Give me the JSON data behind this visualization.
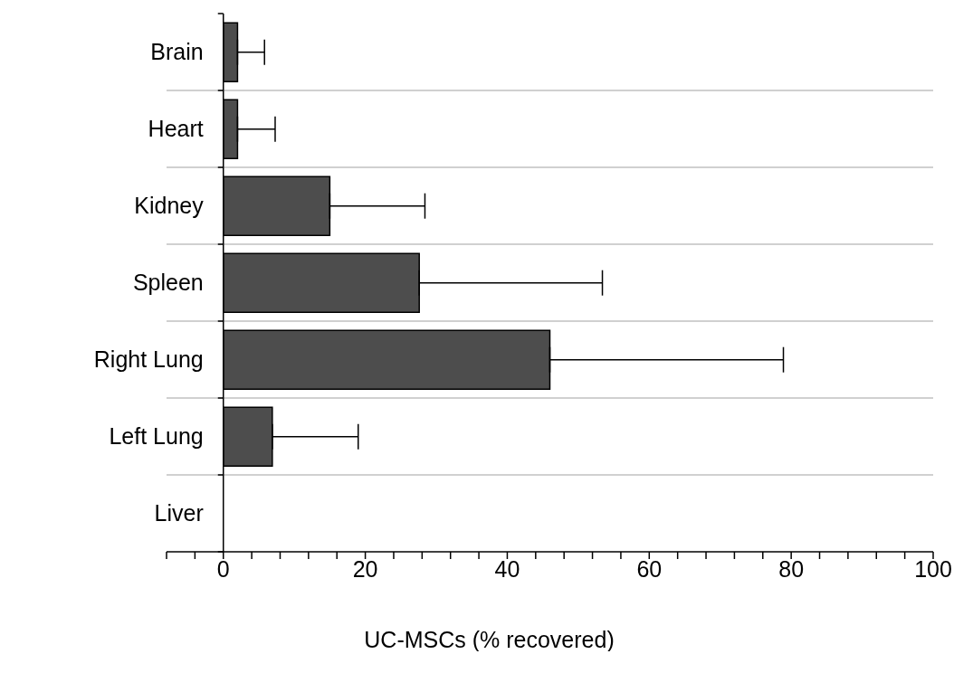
{
  "chart_data": {
    "type": "bar",
    "orientation": "horizontal",
    "xlabel": "UC-MSCs (% recovered)",
    "categories": [
      "Brain",
      "Heart",
      "Kidney",
      "Spleen",
      "Right Lung",
      "Left Lung",
      "Liver"
    ],
    "values": [
      2.0,
      2.0,
      15.0,
      27.6,
      46.0,
      6.9,
      0
    ],
    "errors": [
      [
        2.0,
        5.8
      ],
      [
        2.0,
        7.3
      ],
      [
        15.0,
        28.4
      ],
      [
        27.6,
        53.4
      ],
      [
        46.0,
        78.9
      ],
      [
        6.9,
        19.0
      ],
      null
    ],
    "color": "#4d4d4d",
    "xlim": [
      -8,
      100
    ],
    "xticks": [
      {
        "value": -8,
        "label": null
      },
      {
        "value": -4,
        "label": null
      },
      0,
      {
        "value": 4,
        "label": null
      },
      {
        "value": 8,
        "label": null
      },
      {
        "value": 12,
        "label": null
      },
      {
        "value": 16,
        "label": null
      },
      20,
      {
        "value": 24,
        "label": null
      },
      {
        "value": 28,
        "label": null
      },
      {
        "value": 32,
        "label": null
      },
      {
        "value": 36,
        "label": null
      },
      40,
      {
        "value": 44,
        "label": null
      },
      {
        "value": 48,
        "label": null
      },
      {
        "value": 52,
        "label": null
      },
      {
        "value": 56,
        "label": null
      },
      60,
      {
        "value": 64,
        "label": null
      },
      {
        "value": 68,
        "label": null
      },
      {
        "value": 72,
        "label": null
      },
      {
        "value": 76,
        "label": null
      },
      80,
      {
        "value": 84,
        "label": null
      },
      {
        "value": 88,
        "label": null
      },
      {
        "value": 92,
        "label": null
      },
      {
        "value": 96,
        "label": null
      },
      100
    ],
    "grid": "y",
    "legend": false
  }
}
